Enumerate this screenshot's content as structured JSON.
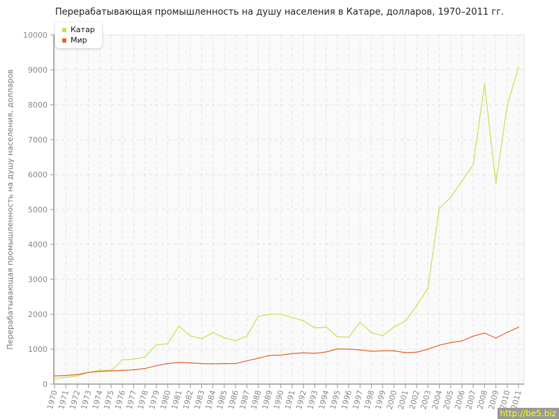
{
  "chart_data": {
    "type": "line",
    "title": "Перерабатывающая промышленность на душу населения в Катаре, долларов, 1970–2011 гг.",
    "ylabel": "Перерабатывающая промышленность на душу населения, долларов",
    "xlabel": "",
    "ylim": [
      0,
      10000
    ],
    "yticks": [
      "0",
      "1000",
      "2000",
      "3000",
      "4000",
      "5000",
      "6000",
      "7000",
      "8000",
      "9000",
      "10000"
    ],
    "grid": true,
    "legend_position": "top-left",
    "x": [
      1970,
      1971,
      1972,
      1973,
      1974,
      1975,
      1976,
      1977,
      1978,
      1979,
      1980,
      1981,
      1982,
      1983,
      1984,
      1985,
      1986,
      1987,
      1988,
      1989,
      1990,
      1991,
      1992,
      1993,
      1994,
      1995,
      1996,
      1997,
      1998,
      1999,
      2000,
      2001,
      2002,
      2003,
      2004,
      2005,
      2006,
      2007,
      2008,
      2009,
      2010,
      2011
    ],
    "series": [
      {
        "name": "Катар",
        "color": "#c8e04a",
        "values": [
          154,
          193,
          233,
          333,
          400,
          387,
          693,
          713,
          780,
          1127,
          1153,
          1660,
          1380,
          1300,
          1473,
          1327,
          1240,
          1373,
          1940,
          2000,
          2000,
          1907,
          1813,
          1607,
          1633,
          1353,
          1340,
          1773,
          1473,
          1387,
          1633,
          1800,
          2247,
          2740,
          5033,
          5347,
          5813,
          6280,
          8593,
          5753,
          7967,
          9080
        ]
      },
      {
        "name": "Мир",
        "color": "#e8622a",
        "values": [
          233,
          247,
          273,
          333,
          360,
          380,
          393,
          407,
          447,
          527,
          587,
          620,
          607,
          587,
          580,
          587,
          587,
          667,
          740,
          820,
          830,
          873,
          895,
          880,
          920,
          1007,
          1000,
          980,
          940,
          953,
          953,
          900,
          913,
          1000,
          1113,
          1187,
          1233,
          1373,
          1460,
          1320,
          1480,
          1627
        ]
      }
    ]
  },
  "watermark": "http://be5.biz"
}
